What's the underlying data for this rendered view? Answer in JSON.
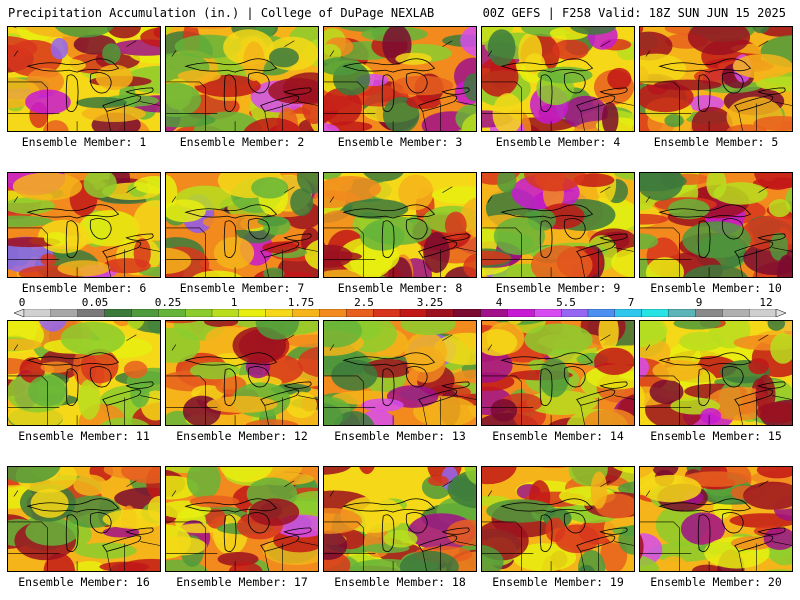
{
  "header": {
    "left": "Precipitation Accumulation (in.) | College of DuPage NEXLAB",
    "right": "00Z GEFS | F258 Valid: 18Z SUN JUN 15 2025"
  },
  "panels": [
    {
      "label": "Ensemble Member: 1",
      "icon": "precip-map-member-1"
    },
    {
      "label": "Ensemble Member: 2",
      "icon": "precip-map-member-2"
    },
    {
      "label": "Ensemble Member: 3",
      "icon": "precip-map-member-3"
    },
    {
      "label": "Ensemble Member: 4",
      "icon": "precip-map-member-4"
    },
    {
      "label": "Ensemble Member: 5",
      "icon": "precip-map-member-5"
    },
    {
      "label": "Ensemble Member: 6",
      "icon": "precip-map-member-6"
    },
    {
      "label": "Ensemble Member: 7",
      "icon": "precip-map-member-7"
    },
    {
      "label": "Ensemble Member: 8",
      "icon": "precip-map-member-8"
    },
    {
      "label": "Ensemble Member: 9",
      "icon": "precip-map-member-9"
    },
    {
      "label": "Ensemble Member: 10",
      "icon": "precip-map-member-10"
    },
    {
      "label": "Ensemble Member: 11",
      "icon": "precip-map-member-11"
    },
    {
      "label": "Ensemble Member: 12",
      "icon": "precip-map-member-12"
    },
    {
      "label": "Ensemble Member: 13",
      "icon": "precip-map-member-13"
    },
    {
      "label": "Ensemble Member: 14",
      "icon": "precip-map-member-14"
    },
    {
      "label": "Ensemble Member: 15",
      "icon": "precip-map-member-15"
    },
    {
      "label": "Ensemble Member: 16",
      "icon": "precip-map-member-16"
    },
    {
      "label": "Ensemble Member: 17",
      "icon": "precip-map-member-17"
    },
    {
      "label": "Ensemble Member: 18",
      "icon": "precip-map-member-18"
    },
    {
      "label": "Ensemble Member: 19",
      "icon": "precip-map-member-19"
    },
    {
      "label": "Ensemble Member: 20",
      "icon": "precip-map-member-20"
    }
  ],
  "colorbar": {
    "tick_labels": [
      "0",
      "0.05",
      "0.25",
      "1",
      "1.75",
      "2.5",
      "3.25",
      "4",
      "5.5",
      "7",
      "9",
      "12"
    ],
    "colors": [
      "#d0d0d0",
      "#a8a8a8",
      "#7a7a7a",
      "#3c7a3c",
      "#4f9a3c",
      "#66b43a",
      "#8ccc2e",
      "#b9de1e",
      "#e8ee10",
      "#f5d817",
      "#f4b41a",
      "#f28a1e",
      "#e85f1e",
      "#d8361c",
      "#c21818",
      "#9c1020",
      "#7a0a30",
      "#a0108a",
      "#c81ad2",
      "#d74cf0",
      "#9466f2",
      "#4c8ff0",
      "#2fc7ee",
      "#27e3e3",
      "#5ab4b8",
      "#8a8a8a",
      "#b0b0b0",
      "#cfcfcf"
    ]
  }
}
